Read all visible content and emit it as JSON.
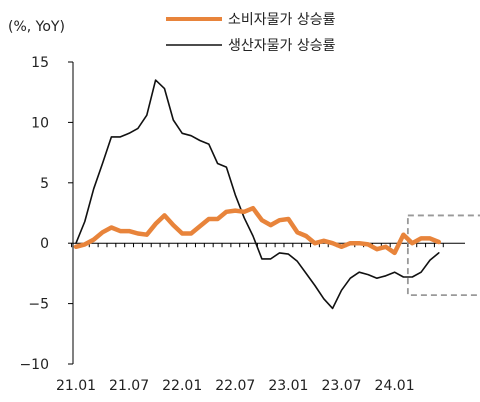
{
  "chart_data": {
    "type": "line",
    "unit_label": "(%, YoY)",
    "x_tick_labels": [
      "21.01",
      "21.07",
      "22.01",
      "22.07",
      "23.01",
      "23.07",
      "24.01"
    ],
    "ylim": [
      -10,
      15
    ],
    "y_ticks": [
      15,
      10,
      5,
      0,
      -5,
      -10
    ],
    "legend_position": "top-center",
    "grid": false,
    "highlight_box": {
      "style": "dashed",
      "x_start": 37.5,
      "x_end": 46.5,
      "y_top": 2.3,
      "y_bottom": -4.3
    },
    "series": [
      {
        "name": "소비자물가 상승률",
        "color": "#E8843B",
        "values": [
          -0.3,
          -0.1,
          0.3,
          0.9,
          1.3,
          1.0,
          1.0,
          0.8,
          0.7,
          1.6,
          2.3,
          1.5,
          0.8,
          0.8,
          1.4,
          2.0,
          2.0,
          2.6,
          2.7,
          2.6,
          2.9,
          1.9,
          1.5,
          1.9,
          2.0,
          0.9,
          0.6,
          0.0,
          0.2,
          0.0,
          -0.3,
          0.0,
          0.0,
          -0.1,
          -0.5,
          -0.3,
          -0.8,
          0.7,
          0.0,
          0.4,
          0.4,
          0.1
        ]
      },
      {
        "name": "생산자물가 상승률",
        "color": "#111111",
        "values": [
          0.0,
          1.8,
          4.5,
          6.6,
          8.8,
          8.8,
          9.1,
          9.5,
          10.6,
          13.5,
          12.8,
          10.2,
          9.1,
          8.9,
          8.5,
          8.2,
          6.6,
          6.3,
          4.0,
          2.1,
          0.6,
          -1.3,
          -1.3,
          -0.8,
          -0.9,
          -1.5,
          -2.5,
          -3.5,
          -4.6,
          -5.4,
          -3.9,
          -2.9,
          -2.4,
          -2.6,
          -2.9,
          -2.7,
          -2.4,
          -2.8,
          -2.8,
          -2.4,
          -1.4,
          -0.8
        ]
      }
    ]
  }
}
